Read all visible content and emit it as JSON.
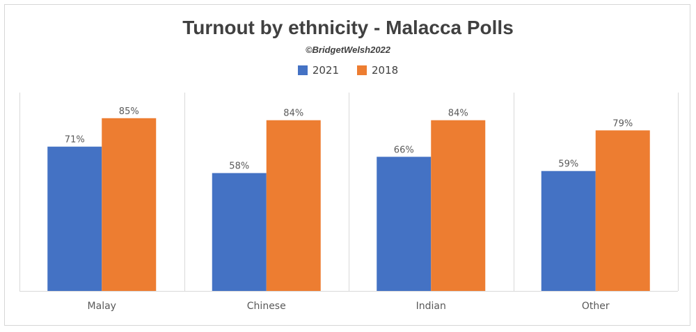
{
  "chart_data": {
    "type": "bar",
    "title": "Turnout by ethnicity - Malacca Polls",
    "subtitle": "©BridgetWelsh2022",
    "categories": [
      "Malay",
      "Chinese",
      "Indian",
      "Other"
    ],
    "series": [
      {
        "name": "2021",
        "color": "#4472c4",
        "values": [
          71,
          58,
          66,
          59
        ],
        "labels": [
          "71%",
          "58%",
          "66%",
          "59%"
        ]
      },
      {
        "name": "2018",
        "color": "#ed7d31",
        "values": [
          85,
          84,
          84,
          79
        ],
        "labels": [
          "85%",
          "84%",
          "84%",
          "79%"
        ]
      }
    ],
    "ylim": [
      0,
      100
    ],
    "xlabel": "",
    "ylabel": "",
    "legend_position": "top-center",
    "grid": false,
    "separator_color": "#d9d9d9",
    "axis_color": "#d9d9d9",
    "label_color": "#595959"
  }
}
